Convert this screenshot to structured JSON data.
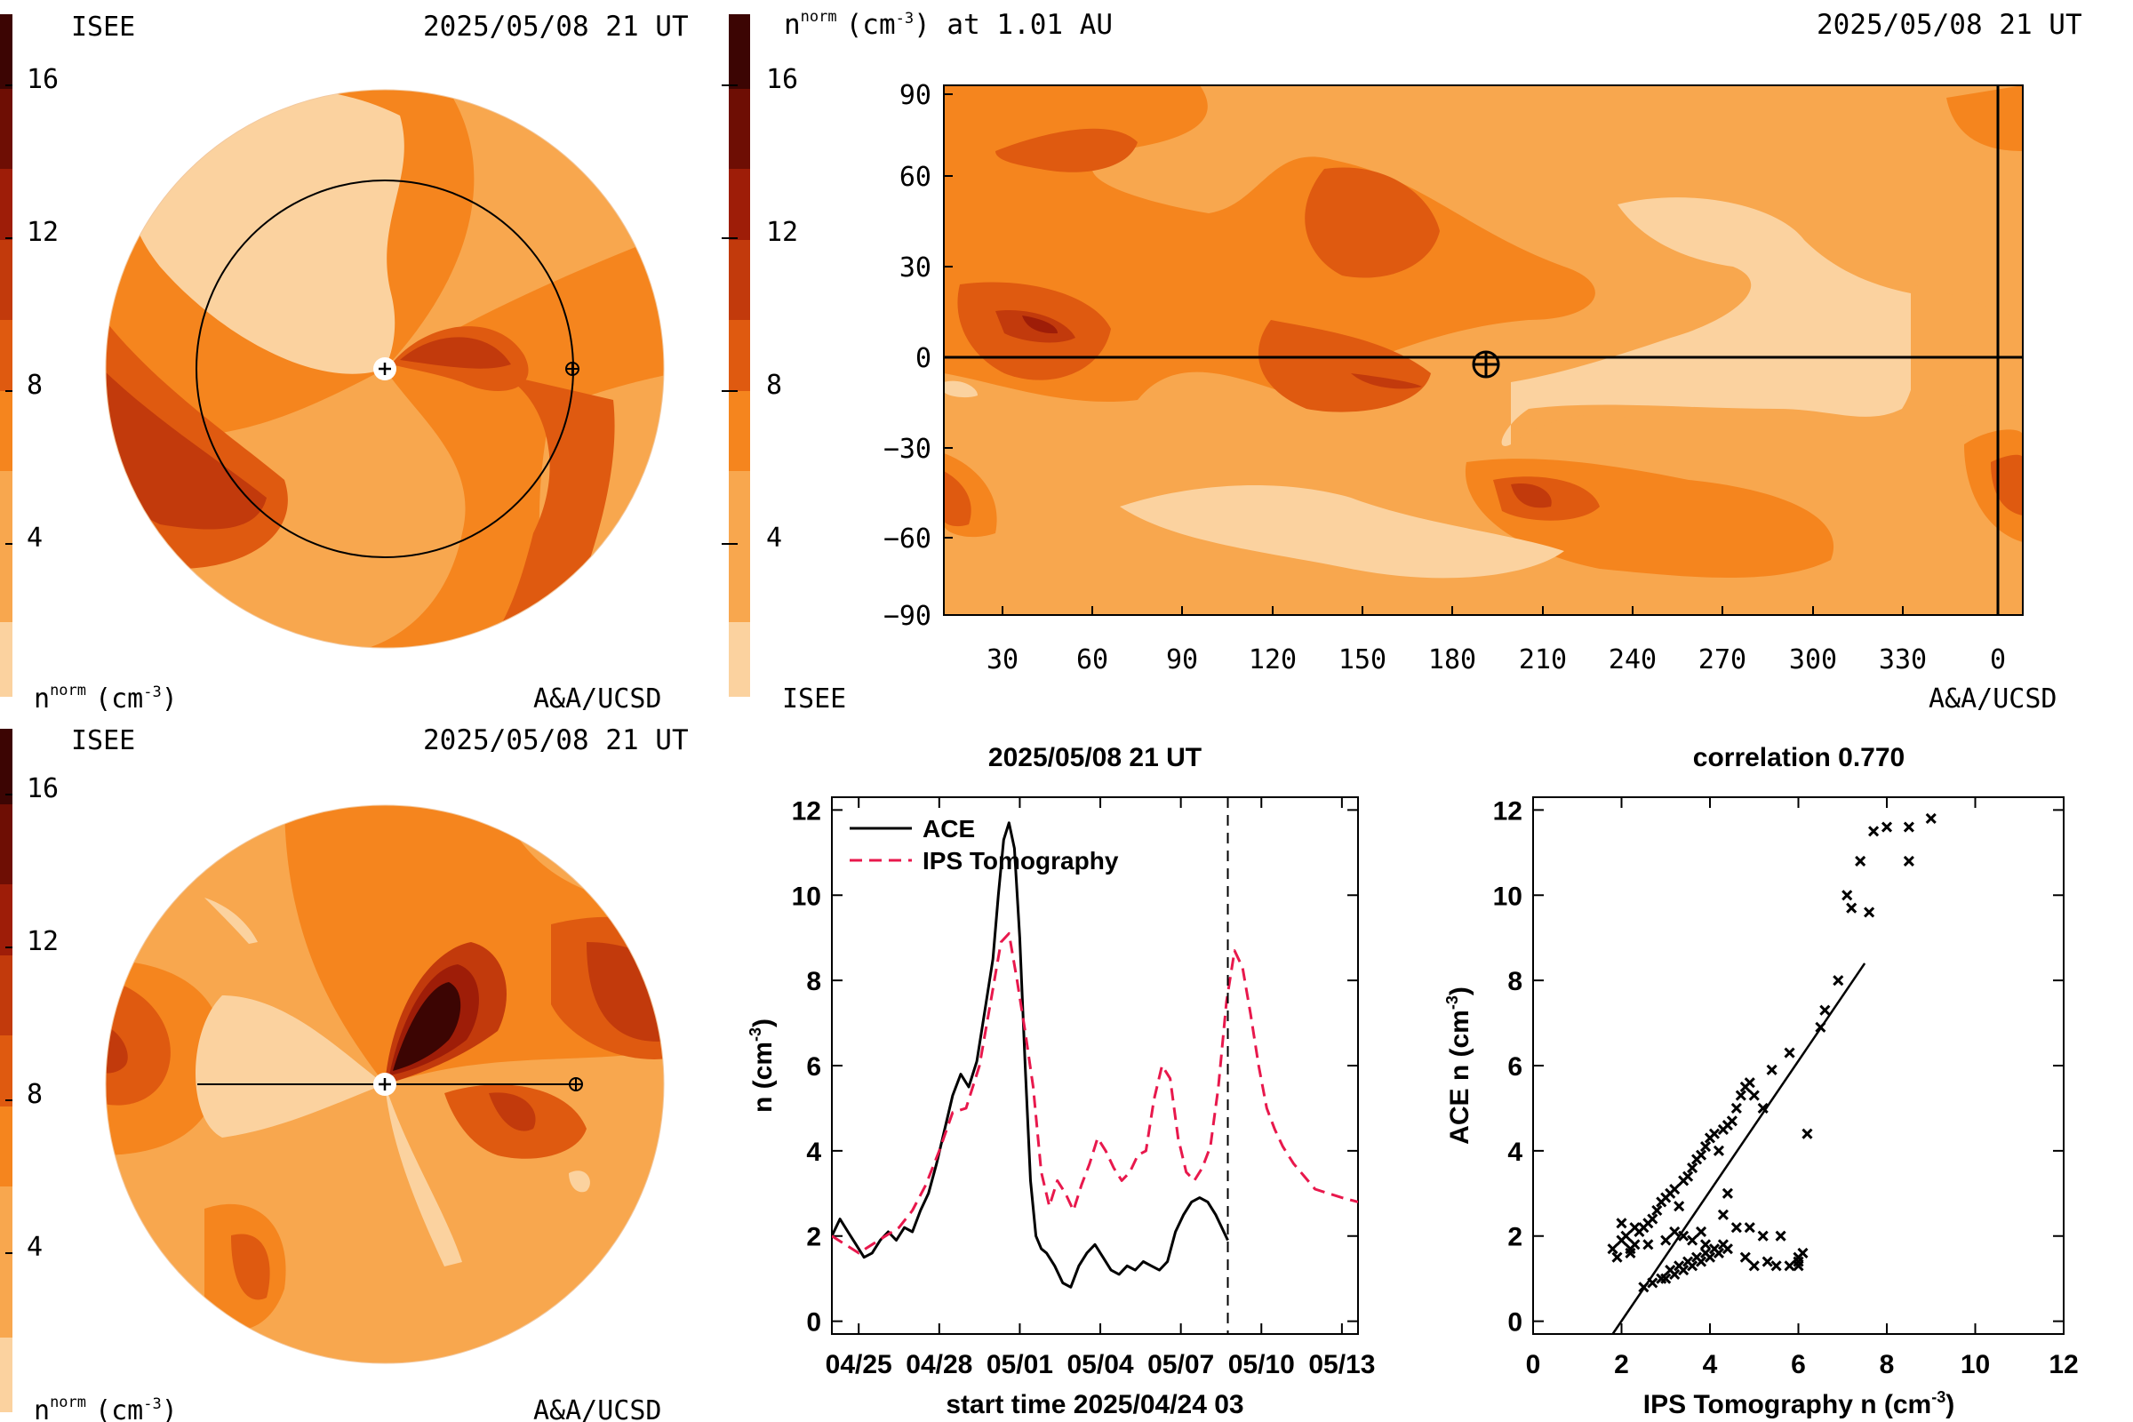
{
  "colors": {
    "scale": [
      "#fbd29f",
      "#f8a74e",
      "#f5851e",
      "#df5a10",
      "#c23a0c",
      "#9e1d08",
      "#6e0e04",
      "#3c0503"
    ],
    "ace_line": "#000000",
    "ips_line": "#e8184c",
    "scatter_point": "#000000"
  },
  "panels": {
    "eq_top": {
      "org": "ISEE",
      "datetime": "2025/05/08 21 UT",
      "credit": "A&A/UCSD",
      "cbar_title": "n",
      "cbar_sup": "norm",
      "cbar_unit": "(cm",
      "cbar_unit_sup": "-3",
      "cbar_unit_end": ")",
      "cbar_ticks": [
        "4",
        "8",
        "12",
        "16"
      ]
    },
    "eq_bottom": {
      "org": "ISEE",
      "datetime": "2025/05/08 21 UT",
      "credit": "A&A/UCSD",
      "cbar_title": "n",
      "cbar_sup": "norm",
      "cbar_unit": "(cm",
      "cbar_unit_sup": "-3",
      "cbar_unit_end": ")",
      "cbar_ticks": [
        "4",
        "8",
        "12",
        "16"
      ]
    },
    "synoptic": {
      "title_n": "n",
      "title_sup": "norm",
      "title_unit": "(cm",
      "title_unit_sup": "-3",
      "title_rest": ") at 1.01 AU",
      "datetime": "2025/05/08 21 UT",
      "org": "ISEE",
      "credit": "A&A/UCSD",
      "cbar_ticks": [
        "4",
        "8",
        "12",
        "16"
      ],
      "x_ticks": [
        "30",
        "60",
        "90",
        "120",
        "150",
        "180",
        "210",
        "240",
        "270",
        "300",
        "330",
        "0"
      ],
      "y_ticks": [
        "90",
        "60",
        "30",
        "0",
        "−30",
        "−60",
        "−90"
      ]
    }
  },
  "chart_data": [
    {
      "type": "line",
      "title": "2025/05/08 21 UT",
      "xlabel": "start time 2025/04/24 03",
      "ylabel": "n (cm",
      "ylabel_sup": "-3",
      "ylabel_end": ")",
      "x_tick_labels": [
        "04/25",
        "04/28",
        "05/01",
        "05/04",
        "05/07",
        "05/10",
        "05/13"
      ],
      "x_tick_days": [
        1,
        4,
        7,
        10,
        13,
        16,
        19
      ],
      "y_ticks": [
        0,
        2,
        4,
        6,
        8,
        10,
        12
      ],
      "xlim_days": [
        0,
        19.6
      ],
      "ylim": [
        -0.3,
        12.3
      ],
      "now_marker_day": 14.75,
      "legend_position": "top-left",
      "series": [
        {
          "name": "ACE",
          "style": "solid",
          "x_days": [
            0.0,
            0.3,
            0.6,
            0.9,
            1.2,
            1.5,
            1.8,
            2.1,
            2.4,
            2.7,
            3.0,
            3.3,
            3.6,
            3.9,
            4.2,
            4.5,
            4.8,
            5.1,
            5.4,
            5.7,
            6.0,
            6.2,
            6.4,
            6.6,
            6.8,
            7.0,
            7.2,
            7.4,
            7.6,
            7.8,
            8.0,
            8.3,
            8.6,
            8.9,
            9.2,
            9.5,
            9.8,
            10.1,
            10.4,
            10.7,
            11.0,
            11.3,
            11.6,
            11.9,
            12.2,
            12.5,
            12.8,
            13.1,
            13.4,
            13.7,
            14.0,
            14.3,
            14.6,
            14.75
          ],
          "values": [
            2.0,
            2.4,
            2.1,
            1.8,
            1.5,
            1.6,
            1.9,
            2.1,
            1.9,
            2.2,
            2.1,
            2.6,
            3.0,
            3.7,
            4.5,
            5.3,
            5.8,
            5.5,
            6.1,
            7.3,
            8.5,
            10.0,
            11.3,
            11.7,
            11.1,
            9.0,
            6.0,
            3.3,
            2.0,
            1.7,
            1.6,
            1.3,
            0.9,
            0.8,
            1.3,
            1.6,
            1.8,
            1.5,
            1.2,
            1.1,
            1.3,
            1.2,
            1.4,
            1.3,
            1.2,
            1.4,
            2.1,
            2.5,
            2.8,
            2.9,
            2.8,
            2.5,
            2.1,
            1.9
          ]
        },
        {
          "name": "IPS Tomography",
          "style": "dashed",
          "x_days": [
            0.0,
            0.5,
            1.0,
            1.5,
            2.0,
            2.5,
            3.0,
            3.5,
            4.0,
            4.5,
            5.0,
            5.5,
            6.0,
            6.3,
            6.6,
            6.9,
            7.2,
            7.5,
            7.8,
            8.1,
            8.4,
            8.7,
            9.0,
            9.3,
            9.6,
            9.9,
            10.2,
            10.5,
            10.8,
            11.1,
            11.4,
            11.7,
            12.0,
            12.3,
            12.6,
            12.9,
            13.2,
            13.5,
            13.8,
            14.1,
            14.4,
            14.7,
            15.0,
            15.3,
            15.6,
            15.9,
            16.2,
            16.5,
            16.8,
            17.2,
            17.6,
            18.0,
            18.5,
            19.0,
            19.6
          ],
          "values": [
            2.0,
            1.8,
            1.6,
            1.8,
            2.0,
            2.2,
            2.6,
            3.2,
            4.0,
            4.9,
            5.0,
            6.0,
            7.8,
            8.9,
            9.1,
            8.0,
            6.8,
            5.5,
            3.5,
            2.7,
            3.3,
            3.0,
            2.6,
            3.2,
            3.7,
            4.3,
            4.0,
            3.6,
            3.3,
            3.5,
            3.9,
            4.0,
            5.2,
            6.0,
            5.7,
            4.3,
            3.5,
            3.3,
            3.6,
            4.1,
            5.5,
            7.5,
            8.7,
            8.3,
            7.2,
            6.0,
            5.0,
            4.5,
            4.1,
            3.7,
            3.4,
            3.1,
            3.0,
            2.9,
            2.8
          ]
        }
      ]
    },
    {
      "type": "scatter",
      "title": "correlation 0.770",
      "xlabel": "IPS Tomography n (cm",
      "xlabel_sup": "-3",
      "xlabel_end": ")",
      "ylabel": "ACE n (cm",
      "ylabel_sup": "-3",
      "ylabel_end": ")",
      "x_ticks": [
        0,
        2,
        4,
        6,
        8,
        10,
        12
      ],
      "y_ticks": [
        0,
        2,
        4,
        6,
        8,
        10,
        12
      ],
      "xlim": [
        0,
        12
      ],
      "ylim": [
        -0.3,
        12.3
      ],
      "fit_line": {
        "x": [
          1.8,
          7.5
        ],
        "y": [
          -0.3,
          8.4
        ]
      },
      "points": [
        [
          1.8,
          1.7
        ],
        [
          1.9,
          1.5
        ],
        [
          2.0,
          2.3
        ],
        [
          2.0,
          1.9
        ],
        [
          2.1,
          2.0
        ],
        [
          2.2,
          1.6
        ],
        [
          2.3,
          1.8
        ],
        [
          2.3,
          2.2
        ],
        [
          2.4,
          2.1
        ],
        [
          2.5,
          2.2
        ],
        [
          2.6,
          2.3
        ],
        [
          2.7,
          2.4
        ],
        [
          2.8,
          2.6
        ],
        [
          2.9,
          2.8
        ],
        [
          3.0,
          2.9
        ],
        [
          3.1,
          3.0
        ],
        [
          3.2,
          3.1
        ],
        [
          3.3,
          2.7
        ],
        [
          3.4,
          3.3
        ],
        [
          3.5,
          3.4
        ],
        [
          3.6,
          3.6
        ],
        [
          3.7,
          3.8
        ],
        [
          3.8,
          3.9
        ],
        [
          3.9,
          4.1
        ],
        [
          4.0,
          4.3
        ],
        [
          4.1,
          4.4
        ],
        [
          4.2,
          4.0
        ],
        [
          4.3,
          4.5
        ],
        [
          4.4,
          4.6
        ],
        [
          4.5,
          4.7
        ],
        [
          4.6,
          5.0
        ],
        [
          4.7,
          5.3
        ],
        [
          4.8,
          5.5
        ],
        [
          4.9,
          5.6
        ],
        [
          5.0,
          5.3
        ],
        [
          5.2,
          5.0
        ],
        [
          5.4,
          5.9
        ],
        [
          5.8,
          6.3
        ],
        [
          6.2,
          4.4
        ],
        [
          6.5,
          6.9
        ],
        [
          6.6,
          7.3
        ],
        [
          6.9,
          8.0
        ],
        [
          7.1,
          10.0
        ],
        [
          7.2,
          9.7
        ],
        [
          7.4,
          10.8
        ],
        [
          7.6,
          9.6
        ],
        [
          7.7,
          11.5
        ],
        [
          8.0,
          11.6
        ],
        [
          8.5,
          10.8
        ],
        [
          8.5,
          11.6
        ],
        [
          9.0,
          11.8
        ],
        [
          2.5,
          0.8
        ],
        [
          2.7,
          0.9
        ],
        [
          2.9,
          1.0
        ],
        [
          3.0,
          1.0
        ],
        [
          3.1,
          1.2
        ],
        [
          3.2,
          1.1
        ],
        [
          3.3,
          1.3
        ],
        [
          3.4,
          1.2
        ],
        [
          3.5,
          1.4
        ],
        [
          3.6,
          1.3
        ],
        [
          3.7,
          1.5
        ],
        [
          3.8,
          1.4
        ],
        [
          3.9,
          1.6
        ],
        [
          4.0,
          1.5
        ],
        [
          4.1,
          1.7
        ],
        [
          4.2,
          1.6
        ],
        [
          4.3,
          1.8
        ],
        [
          4.4,
          1.7
        ],
        [
          3.6,
          1.9
        ],
        [
          3.8,
          2.1
        ],
        [
          3.9,
          1.8
        ],
        [
          4.3,
          2.5
        ],
        [
          4.6,
          2.2
        ],
        [
          4.8,
          1.5
        ],
        [
          5.0,
          1.3
        ],
        [
          5.3,
          1.4
        ],
        [
          5.5,
          1.3
        ],
        [
          5.8,
          1.3
        ],
        [
          6.0,
          1.3
        ],
        [
          6.0,
          1.5
        ],
        [
          6.1,
          1.6
        ],
        [
          6.0,
          1.4
        ],
        [
          5.6,
          2.0
        ],
        [
          5.2,
          2.0
        ],
        [
          4.9,
          2.2
        ],
        [
          4.4,
          3.0
        ],
        [
          3.0,
          1.9
        ],
        [
          3.2,
          2.1
        ],
        [
          3.4,
          2.0
        ],
        [
          2.6,
          1.8
        ],
        [
          2.2,
          1.7
        ]
      ]
    }
  ]
}
